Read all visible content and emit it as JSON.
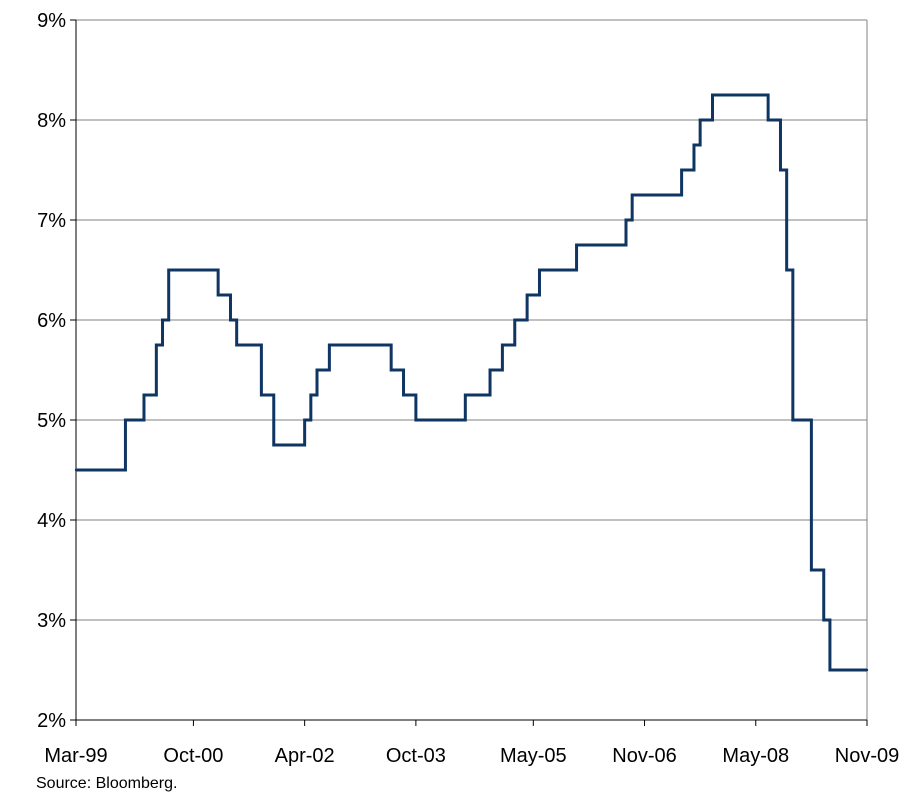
{
  "source_note": "Source: Bloomberg.",
  "chart_data": {
    "type": "line",
    "step": true,
    "title": "",
    "xlabel": "",
    "ylabel": "",
    "ylim": [
      2,
      9
    ],
    "xlim": [
      "1999-03",
      "2009-11"
    ],
    "grid": true,
    "line_color": "#0f3563",
    "y_ticks": [
      2,
      3,
      4,
      5,
      6,
      7,
      8,
      9
    ],
    "y_tick_labels": [
      "2%",
      "3%",
      "4%",
      "5%",
      "6%",
      "7%",
      "8%",
      "9%"
    ],
    "x_tick_labels": [
      "Mar-99",
      "Oct-00",
      "Apr-02",
      "Oct-03",
      "May-05",
      "Nov-06",
      "May-08",
      "Nov-09"
    ],
    "x_ticks": [
      "1999-03",
      "2000-10",
      "2002-04",
      "2003-10",
      "2005-05",
      "2006-11",
      "2008-05",
      "2009-11"
    ],
    "series": [
      {
        "name": "",
        "points": [
          [
            "1999-03",
            4.5
          ],
          [
            "1999-11",
            5.0
          ],
          [
            "2000-02",
            5.25
          ],
          [
            "2000-04",
            5.75
          ],
          [
            "2000-05",
            6.0
          ],
          [
            "2000-06",
            6.5
          ],
          [
            "2001-02",
            6.25
          ],
          [
            "2001-04",
            6.0
          ],
          [
            "2001-05",
            5.75
          ],
          [
            "2001-09",
            5.25
          ],
          [
            "2001-11",
            4.75
          ],
          [
            "2002-04",
            5.0
          ],
          [
            "2002-05",
            5.25
          ],
          [
            "2002-06",
            5.5
          ],
          [
            "2002-08",
            5.75
          ],
          [
            "2003-06",
            5.5
          ],
          [
            "2003-08",
            5.25
          ],
          [
            "2003-10",
            5.0
          ],
          [
            "2004-06",
            5.25
          ],
          [
            "2004-10",
            5.5
          ],
          [
            "2004-12",
            5.75
          ],
          [
            "2005-02",
            6.0
          ],
          [
            "2005-04",
            6.25
          ],
          [
            "2005-06",
            6.5
          ],
          [
            "2005-12",
            6.75
          ],
          [
            "2006-08",
            7.0
          ],
          [
            "2006-09",
            7.25
          ],
          [
            "2007-05",
            7.5
          ],
          [
            "2007-07",
            7.75
          ],
          [
            "2007-08",
            8.0
          ],
          [
            "2007-10",
            8.25
          ],
          [
            "2008-07",
            8.0
          ],
          [
            "2008-09",
            7.5
          ],
          [
            "2008-10",
            6.5
          ],
          [
            "2008-11",
            5.0
          ],
          [
            "2009-02",
            3.5
          ],
          [
            "2009-04",
            3.0
          ],
          [
            "2009-05",
            2.5
          ],
          [
            "2009-11",
            2.5
          ]
        ]
      }
    ]
  }
}
